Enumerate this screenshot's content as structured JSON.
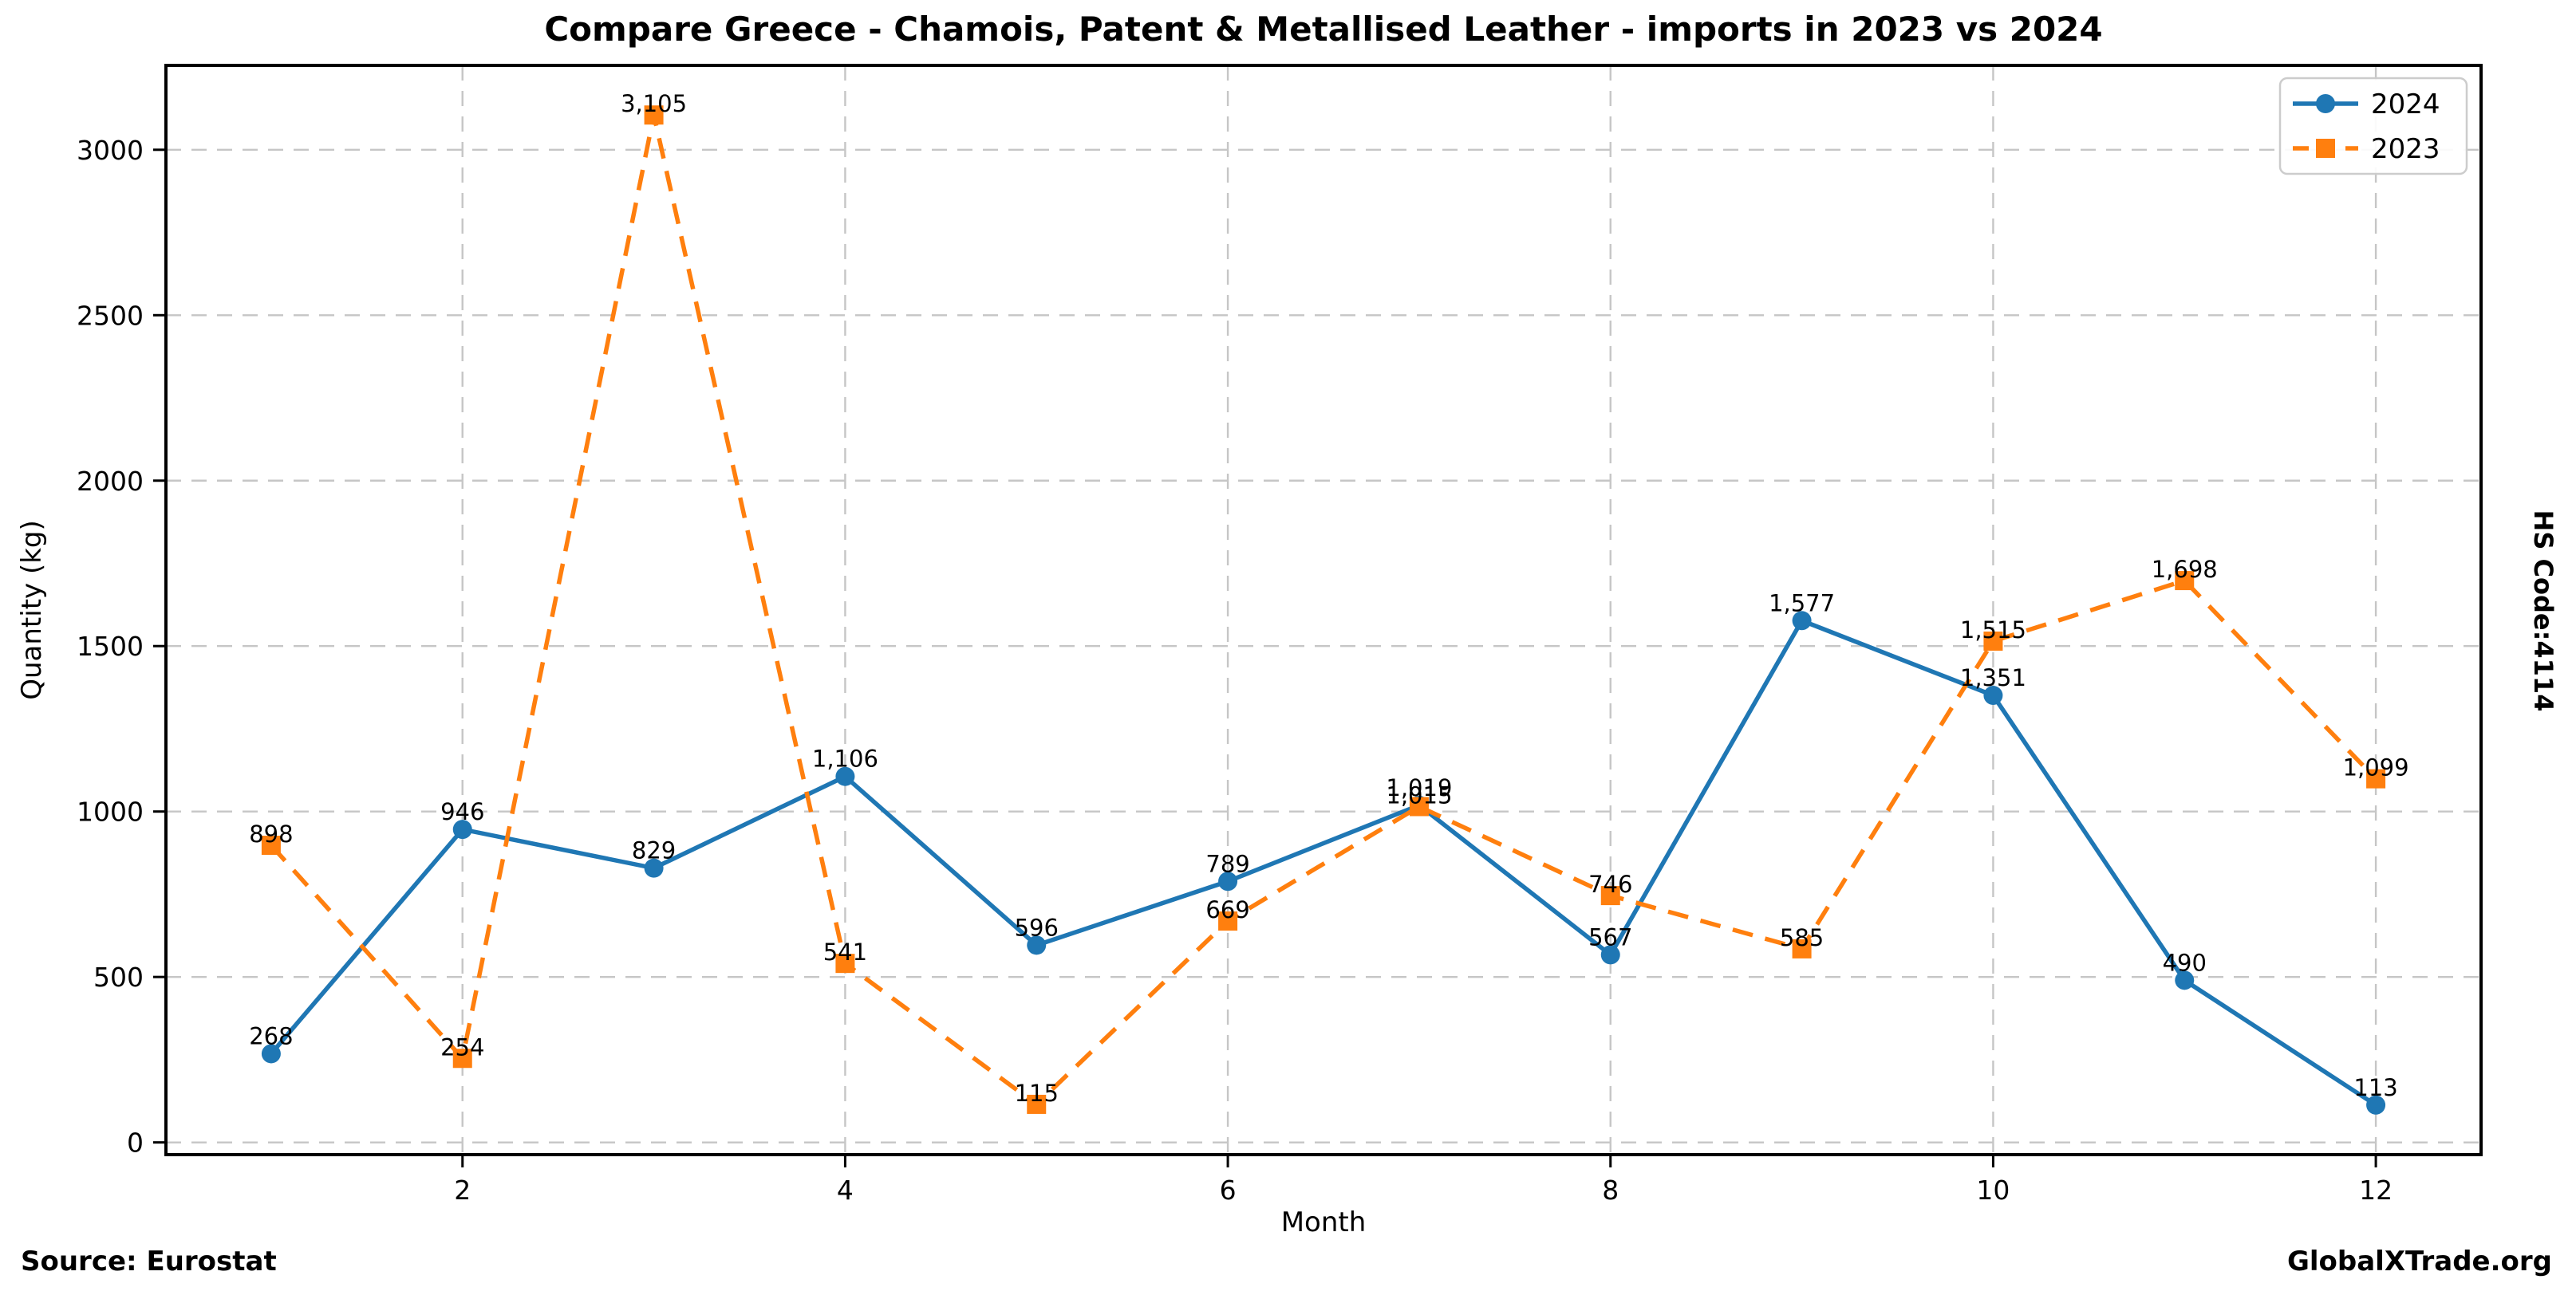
{
  "page": {
    "title": "Compare Greece - Chamois, Patent & Metallised Leather - imports in 2023 vs 2024",
    "source_note": "Source: Eurostat",
    "brand": "GlobalXTrade.org",
    "side_note": "HS Code:4114"
  },
  "chart_data": {
    "type": "line",
    "title": "Compare Greece - Chamois, Patent & Metallised Leather - imports in 2023 vs 2024",
    "xlabel": "Month",
    "ylabel": "Quantity (kg)",
    "x": [
      1,
      2,
      3,
      4,
      5,
      6,
      7,
      8,
      9,
      10,
      11,
      12
    ],
    "series": [
      {
        "name": "2024",
        "color": "#1f77b4",
        "line_style": "solid",
        "marker": "circle",
        "values": [
          268,
          946,
          829,
          1106,
          596,
          789,
          1019,
          567,
          1577,
          1351,
          490,
          113
        ]
      },
      {
        "name": "2023",
        "color": "#ff7f0e",
        "line_style": "dashed",
        "marker": "square",
        "values": [
          898,
          254,
          3105,
          541,
          115,
          669,
          1015,
          746,
          585,
          1515,
          1698,
          1099
        ]
      }
    ],
    "x_ticks": [
      2,
      4,
      6,
      8,
      10,
      12
    ],
    "y_ticks": [
      0,
      500,
      1000,
      1500,
      2000,
      2500,
      3000
    ],
    "xlim": [
      0.45,
      12.55
    ],
    "ylim": [
      -37,
      3255
    ],
    "grid": true,
    "grid_color": "#c6c6c6",
    "spine_color": "#000000",
    "legend": {
      "position": "upper right",
      "entries": [
        "2024",
        "2023"
      ]
    },
    "value_label_format": "thousands-comma"
  }
}
